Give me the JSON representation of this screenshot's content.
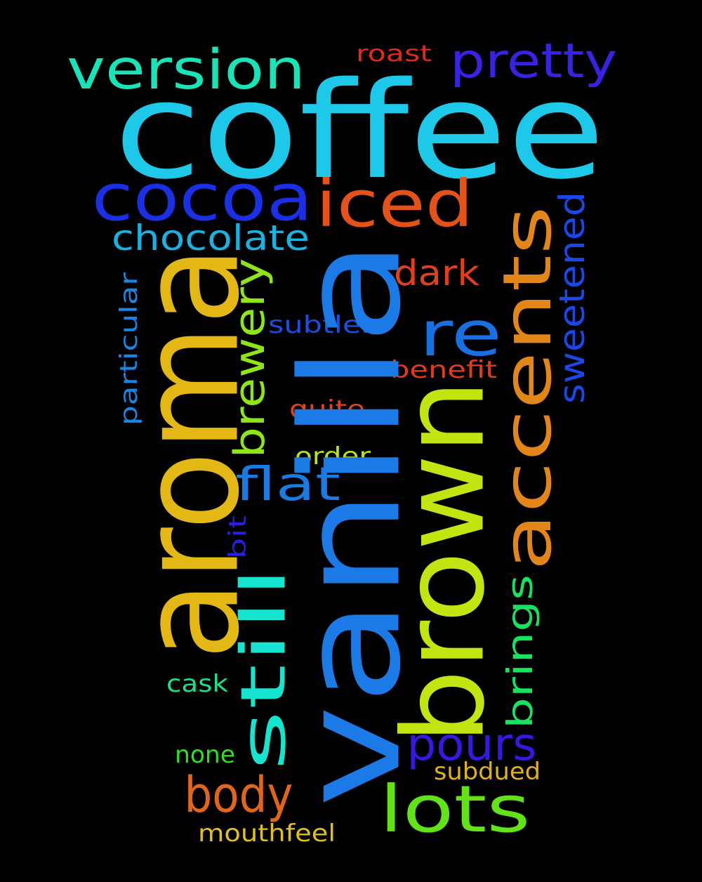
{
  "words": [
    {
      "id": "coffee",
      "text": "coffee",
      "color": "#1ec8e8"
    },
    {
      "id": "vanilla",
      "text": "vanilla",
      "color": "#1b7ae6"
    },
    {
      "id": "aroma",
      "text": "aroma",
      "color": "#e3b714"
    },
    {
      "id": "brown",
      "text": "brown",
      "color": "#c3e411"
    },
    {
      "id": "accents",
      "text": "accents",
      "color": "#e3861a"
    },
    {
      "id": "cocoa",
      "text": "cocoa",
      "color": "#1a2fe6"
    },
    {
      "id": "iced",
      "text": "iced",
      "color": "#e4521a"
    },
    {
      "id": "version",
      "text": "version",
      "color": "#19e3b8"
    },
    {
      "id": "pretty",
      "text": "pretty",
      "color": "#3a22e5"
    },
    {
      "id": "still",
      "text": "still",
      "color": "#17e4cf"
    },
    {
      "id": "lots",
      "text": "lots",
      "color": "#62e318"
    },
    {
      "id": "re",
      "text": "re",
      "color": "#1870e3"
    },
    {
      "id": "brewery",
      "text": "brewery",
      "color": "#8ee618"
    },
    {
      "id": "chocolate",
      "text": "chocolate",
      "color": "#18b2e3"
    },
    {
      "id": "sweetened",
      "text": "sweetened",
      "color": "#1a47e6"
    },
    {
      "id": "pours",
      "text": "pours",
      "color": "#3618e3"
    },
    {
      "id": "body",
      "text": "body",
      "color": "#e3651a"
    },
    {
      "id": "flat",
      "text": "flat",
      "color": "#1a7ce3"
    },
    {
      "id": "brings",
      "text": "brings",
      "color": "#18e35e"
    },
    {
      "id": "dark",
      "text": "dark",
      "color": "#e3401a"
    },
    {
      "id": "roast",
      "text": "roast",
      "color": "#e3291a"
    },
    {
      "id": "particular",
      "text": "particular",
      "color": "#1a86e3"
    },
    {
      "id": "subtler",
      "text": "subtler",
      "color": "#1a4fe3"
    },
    {
      "id": "benefit",
      "text": "benefit",
      "color": "#e33a1a"
    },
    {
      "id": "quite",
      "text": "quite",
      "color": "#e3431a"
    },
    {
      "id": "order",
      "text": "order",
      "color": "#b8e318"
    },
    {
      "id": "bit",
      "text": "bit",
      "color": "#2a1ee3"
    },
    {
      "id": "cask",
      "text": "cask",
      "color": "#18e38a"
    },
    {
      "id": "none",
      "text": "none",
      "color": "#2ae318"
    },
    {
      "id": "subdued",
      "text": "subdued",
      "color": "#e3b218"
    },
    {
      "id": "mouthfeel",
      "text": "mouthfeel",
      "color": "#e3c018"
    }
  ]
}
